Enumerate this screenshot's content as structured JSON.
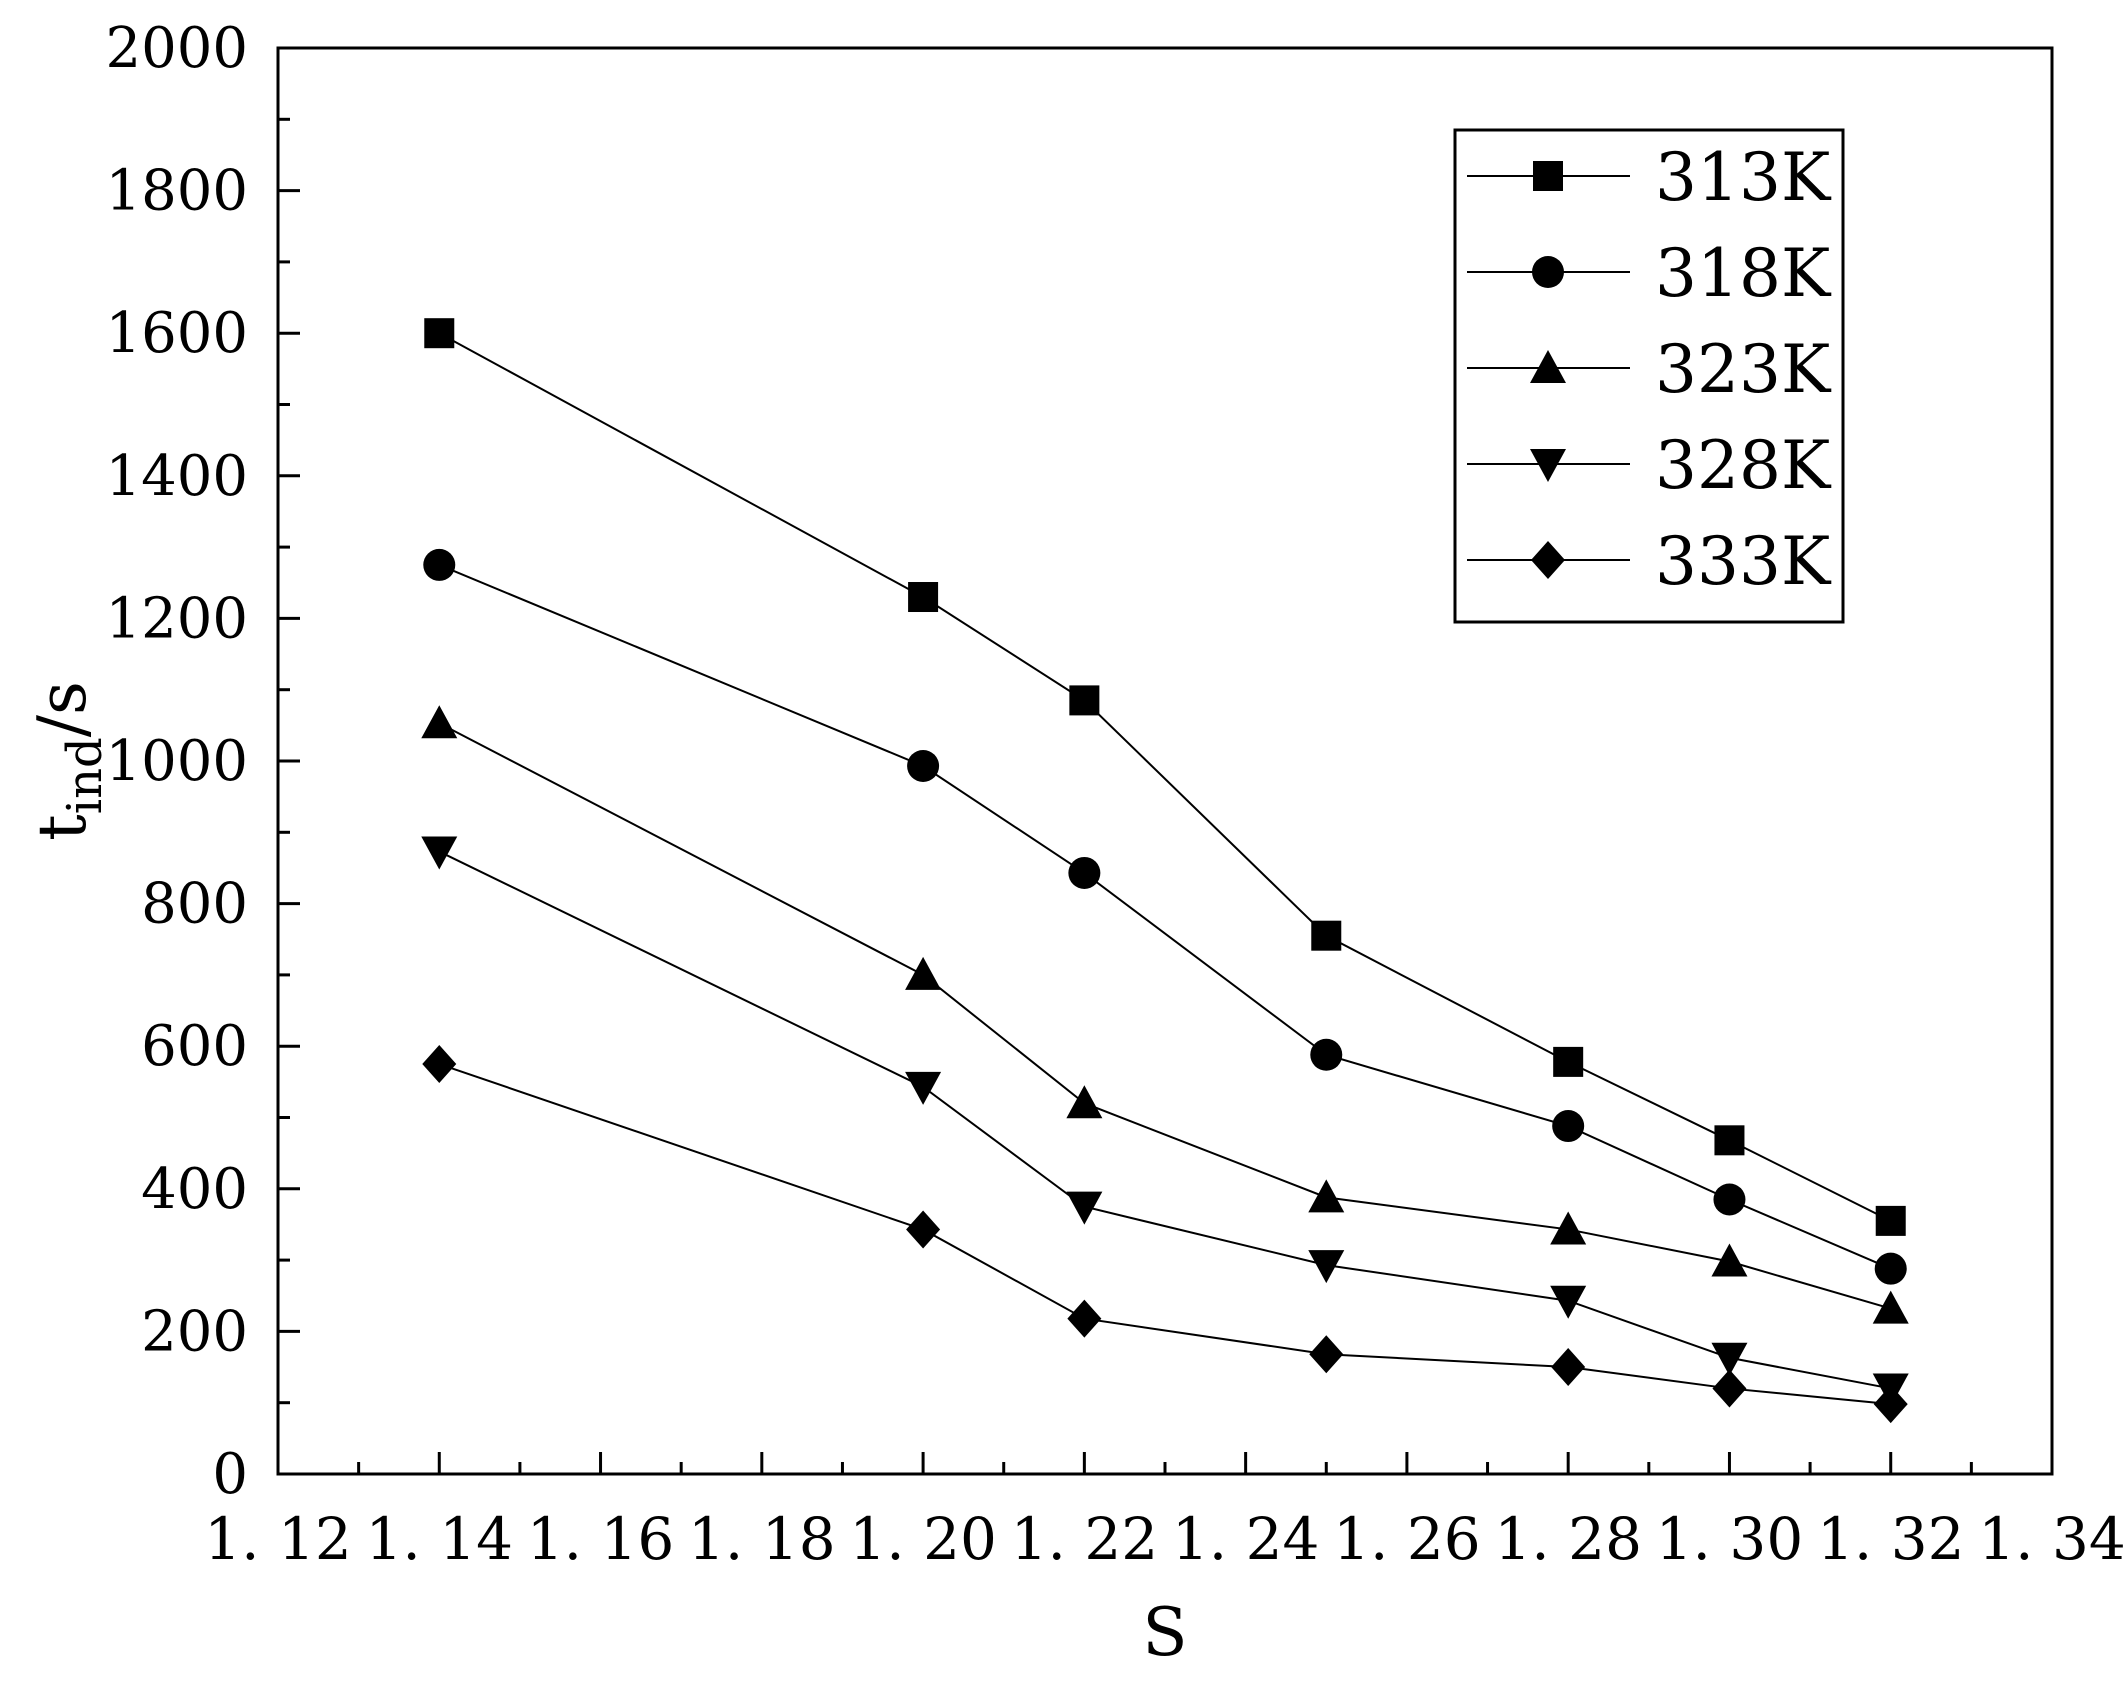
{
  "chart_data": {
    "type": "line",
    "title": "",
    "xlabel": "S",
    "ylabel": {
      "main": "t",
      "sub": "ind",
      "suffix": "/s"
    },
    "xlim": [
      1.12,
      1.34
    ],
    "ylim": [
      0,
      2000
    ],
    "x_tick_labels": [
      "1. 12",
      "1. 14",
      "1. 16",
      "1. 18",
      "1. 20",
      "1. 22",
      "1. 24",
      "1. 26",
      "1. 28",
      "1. 30",
      "1. 32",
      "1. 34"
    ],
    "x_tick_values": [
      1.12,
      1.14,
      1.16,
      1.18,
      1.2,
      1.22,
      1.24,
      1.26,
      1.28,
      1.3,
      1.32,
      1.34
    ],
    "y_tick_labels": [
      "0",
      "200",
      "400",
      "600",
      "800",
      "1000",
      "1200",
      "1400",
      "1600",
      "1800",
      "2000"
    ],
    "y_tick_values": [
      0,
      200,
      400,
      600,
      800,
      1000,
      1200,
      1400,
      1600,
      1800,
      2000
    ],
    "grid": false,
    "legend_position": "top-right",
    "x": [
      1.14,
      1.2,
      1.22,
      1.25,
      1.28,
      1.3,
      1.32
    ],
    "series": [
      {
        "name": "313K",
        "marker": "square",
        "values": [
          1600,
          1230,
          1085,
          755,
          578,
          468,
          355
        ]
      },
      {
        "name": "318K",
        "marker": "circle",
        "values": [
          1275,
          993,
          843,
          588,
          488,
          385,
          288
        ]
      },
      {
        "name": "323K",
        "marker": "triangle-up",
        "values": [
          1053,
          700,
          520,
          388,
          343,
          298,
          232
        ]
      },
      {
        "name": "328K",
        "marker": "triangle-down",
        "values": [
          873,
          543,
          375,
          293,
          243,
          163,
          120
        ]
      },
      {
        "name": "333K",
        "marker": "diamond",
        "values": [
          575,
          343,
          218,
          168,
          150,
          120,
          98
        ]
      }
    ],
    "colors": {
      "line": "#000000",
      "marker": "#000000",
      "background": "#ffffff"
    }
  }
}
